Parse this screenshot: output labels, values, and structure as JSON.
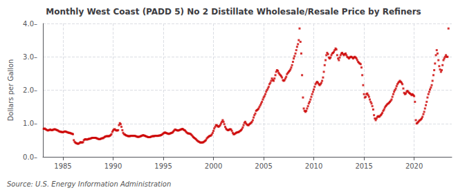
{
  "chart_data": {
    "type": "scatter",
    "title": "Monthly West Coast (PADD 5) No 2 Distillate Wholesale/Resale Price by Refiners",
    "ylabel": "Dollars per Gallon",
    "annotations": [
      "Source: U.S. Energy Information Administration"
    ],
    "color": "#cc0000",
    "marker": "square",
    "grid": true,
    "xlim": [
      1983.0,
      2023.75
    ],
    "ylim": [
      0.0,
      4.0
    ],
    "xticks": [
      1985,
      1990,
      1995,
      2000,
      2005,
      2010,
      2015,
      2020
    ],
    "yticks": [
      {
        "value": 0.0,
        "label": "0.0–"
      },
      {
        "value": 1.0,
        "label": "1.0–"
      },
      {
        "value": 2.0,
        "label": "2.0–"
      },
      {
        "value": 3.0,
        "label": "3.0–"
      },
      {
        "value": 4.0,
        "label": "4.0–"
      }
    ],
    "x": [
      1983.08,
      1983.17,
      1983.25,
      1983.33,
      1983.42,
      1983.5,
      1983.58,
      1983.67,
      1983.75,
      1983.83,
      1983.92,
      1984.0,
      1984.08,
      1984.17,
      1984.25,
      1984.33,
      1984.42,
      1984.5,
      1984.58,
      1984.67,
      1984.75,
      1984.83,
      1984.92,
      1985.0,
      1985.08,
      1985.17,
      1985.25,
      1985.33,
      1985.42,
      1985.5,
      1985.58,
      1985.67,
      1985.75,
      1985.83,
      1985.92,
      1986.0,
      1986.08,
      1986.17,
      1986.25,
      1986.33,
      1986.42,
      1986.5,
      1986.58,
      1986.67,
      1986.75,
      1986.83,
      1986.92,
      1987.0,
      1987.08,
      1987.17,
      1987.25,
      1987.33,
      1987.42,
      1987.5,
      1987.58,
      1987.67,
      1987.75,
      1987.83,
      1987.92,
      1988.0,
      1988.08,
      1988.17,
      1988.25,
      1988.33,
      1988.42,
      1988.5,
      1988.58,
      1988.67,
      1988.75,
      1988.83,
      1988.92,
      1989.0,
      1989.08,
      1989.17,
      1989.25,
      1989.33,
      1989.42,
      1989.5,
      1989.58,
      1989.67,
      1989.75,
      1989.83,
      1989.92,
      1990.0,
      1990.08,
      1990.17,
      1990.25,
      1990.33,
      1990.42,
      1990.5,
      1990.58,
      1990.67,
      1990.75,
      1990.83,
      1990.92,
      1991.0,
      1991.08,
      1991.17,
      1991.25,
      1991.33,
      1991.42,
      1991.5,
      1991.58,
      1991.67,
      1991.75,
      1991.83,
      1991.92,
      1992.0,
      1992.08,
      1992.17,
      1992.25,
      1992.33,
      1992.42,
      1992.5,
      1992.58,
      1992.67,
      1992.75,
      1992.83,
      1992.92,
      1993.0,
      1993.08,
      1993.17,
      1993.25,
      1993.33,
      1993.42,
      1993.5,
      1993.58,
      1993.67,
      1993.75,
      1993.83,
      1993.92,
      1994.0,
      1994.08,
      1994.17,
      1994.25,
      1994.33,
      1994.42,
      1994.5,
      1994.58,
      1994.67,
      1994.75,
      1994.83,
      1994.92,
      1995.0,
      1995.08,
      1995.17,
      1995.25,
      1995.33,
      1995.42,
      1995.5,
      1995.58,
      1995.67,
      1995.75,
      1995.83,
      1995.92,
      1996.0,
      1996.08,
      1996.17,
      1996.25,
      1996.33,
      1996.42,
      1996.5,
      1996.58,
      1996.67,
      1996.75,
      1996.83,
      1996.92,
      1997.0,
      1997.08,
      1997.17,
      1997.25,
      1997.33,
      1997.42,
      1997.5,
      1997.58,
      1997.67,
      1997.75,
      1997.83,
      1997.92,
      1998.0,
      1998.08,
      1998.17,
      1998.25,
      1998.33,
      1998.42,
      1998.5,
      1998.58,
      1998.67,
      1998.75,
      1998.83,
      1998.92,
      1999.0,
      1999.08,
      1999.17,
      1999.25,
      1999.33,
      1999.42,
      1999.5,
      1999.58,
      1999.67,
      1999.75,
      1999.83,
      1999.92,
      2000.0,
      2000.08,
      2000.17,
      2000.25,
      2000.33,
      2000.42,
      2000.5,
      2000.58,
      2000.67,
      2000.75,
      2000.83,
      2000.92,
      2001.0,
      2001.08,
      2001.17,
      2001.25,
      2001.33,
      2001.42,
      2001.5,
      2001.58,
      2001.67,
      2001.75,
      2001.83,
      2001.92,
      2002.0,
      2002.08,
      2002.17,
      2002.25,
      2002.33,
      2002.42,
      2002.5,
      2002.58,
      2002.67,
      2002.75,
      2002.83,
      2002.92,
      2003.0,
      2003.08,
      2003.17,
      2003.25,
      2003.33,
      2003.42,
      2003.5,
      2003.58,
      2003.67,
      2003.75,
      2003.83,
      2003.92,
      2004.0,
      2004.08,
      2004.17,
      2004.25,
      2004.33,
      2004.42,
      2004.5,
      2004.58,
      2004.67,
      2004.75,
      2004.83,
      2004.92,
      2005.0,
      2005.08,
      2005.17,
      2005.25,
      2005.33,
      2005.42,
      2005.5,
      2005.58,
      2005.67,
      2005.75,
      2005.83,
      2005.92,
      2006.0,
      2006.08,
      2006.17,
      2006.25,
      2006.33,
      2006.42,
      2006.5,
      2006.58,
      2006.67,
      2006.75,
      2006.83,
      2006.92,
      2007.0,
      2007.08,
      2007.17,
      2007.25,
      2007.33,
      2007.42,
      2007.5,
      2007.58,
      2007.67,
      2007.75,
      2007.83,
      2007.92,
      2008.0,
      2008.08,
      2008.17,
      2008.25,
      2008.33,
      2008.42,
      2008.5,
      2008.58,
      2008.67,
      2008.75,
      2008.83,
      2008.92,
      2009.0,
      2009.08,
      2009.17,
      2009.25,
      2009.33,
      2009.42,
      2009.5,
      2009.58,
      2009.67,
      2009.75,
      2009.83,
      2009.92,
      2010.0,
      2010.08,
      2010.17,
      2010.25,
      2010.33,
      2010.42,
      2010.5,
      2010.58,
      2010.67,
      2010.75,
      2010.83,
      2010.92,
      2011.0,
      2011.08,
      2011.17,
      2011.25,
      2011.33,
      2011.42,
      2011.5,
      2011.58,
      2011.67,
      2011.75,
      2011.83,
      2011.92,
      2012.0,
      2012.08,
      2012.17,
      2012.25,
      2012.33,
      2012.42,
      2012.5,
      2012.58,
      2012.67,
      2012.75,
      2012.83,
      2012.92,
      2013.0,
      2013.08,
      2013.17,
      2013.25,
      2013.33,
      2013.42,
      2013.5,
      2013.58,
      2013.67,
      2013.75,
      2013.83,
      2013.92,
      2014.0,
      2014.08,
      2014.17,
      2014.25,
      2014.33,
      2014.42,
      2014.5,
      2014.58,
      2014.67,
      2014.75,
      2014.83,
      2014.92,
      2015.0,
      2015.08,
      2015.17,
      2015.25,
      2015.33,
      2015.42,
      2015.5,
      2015.58,
      2015.67,
      2015.75,
      2015.83,
      2015.92,
      2016.0,
      2016.08,
      2016.17,
      2016.25,
      2016.33,
      2016.42,
      2016.5,
      2016.58,
      2016.67,
      2016.75,
      2016.83,
      2016.92,
      2017.0,
      2017.08,
      2017.17,
      2017.25,
      2017.33,
      2017.42,
      2017.5,
      2017.58,
      2017.67,
      2017.75,
      2017.83,
      2017.92,
      2018.0,
      2018.08,
      2018.17,
      2018.25,
      2018.33,
      2018.42,
      2018.5,
      2018.58,
      2018.67,
      2018.75,
      2018.83,
      2018.92,
      2019.0,
      2019.08,
      2019.17,
      2019.25,
      2019.33,
      2019.42,
      2019.5,
      2019.58,
      2019.67,
      2019.75,
      2019.83,
      2019.92,
      2020.0,
      2020.08,
      2020.17,
      2020.25,
      2020.33,
      2020.42,
      2020.5,
      2020.58,
      2020.67,
      2020.75,
      2020.83,
      2020.92,
      2021.0,
      2021.08,
      2021.17,
      2021.25,
      2021.33,
      2021.42,
      2021.5,
      2021.58,
      2021.67,
      2021.75,
      2021.83,
      2021.92,
      2022.0,
      2022.08,
      2022.17,
      2022.25,
      2022.33,
      2022.42,
      2022.5,
      2022.58,
      2022.67,
      2022.75,
      2022.83,
      2022.92,
      2023.0,
      2023.08,
      2023.17,
      2023.25,
      2023.33,
      2023.42
    ],
    "values": [
      0.84,
      0.85,
      0.83,
      0.82,
      0.8,
      0.79,
      0.8,
      0.81,
      0.82,
      0.8,
      0.8,
      0.81,
      0.82,
      0.83,
      0.82,
      0.81,
      0.8,
      0.79,
      0.77,
      0.76,
      0.75,
      0.75,
      0.74,
      0.74,
      0.75,
      0.76,
      0.76,
      0.75,
      0.74,
      0.73,
      0.72,
      0.72,
      0.71,
      0.7,
      0.69,
      0.68,
      0.5,
      0.45,
      0.42,
      0.41,
      0.4,
      0.39,
      0.4,
      0.42,
      0.44,
      0.43,
      0.43,
      0.44,
      0.5,
      0.52,
      0.53,
      0.52,
      0.52,
      0.53,
      0.54,
      0.54,
      0.55,
      0.56,
      0.57,
      0.57,
      0.57,
      0.57,
      0.57,
      0.56,
      0.55,
      0.54,
      0.53,
      0.53,
      0.54,
      0.55,
      0.56,
      0.56,
      0.58,
      0.6,
      0.61,
      0.62,
      0.62,
      0.62,
      0.62,
      0.63,
      0.65,
      0.68,
      0.75,
      0.79,
      0.82,
      0.83,
      0.8,
      0.79,
      0.79,
      0.8,
      0.95,
      1.01,
      0.98,
      0.9,
      0.8,
      0.72,
      0.68,
      0.67,
      0.65,
      0.64,
      0.63,
      0.62,
      0.62,
      0.62,
      0.63,
      0.63,
      0.63,
      0.63,
      0.63,
      0.63,
      0.62,
      0.61,
      0.6,
      0.6,
      0.6,
      0.61,
      0.62,
      0.63,
      0.64,
      0.65,
      0.64,
      0.63,
      0.62,
      0.61,
      0.6,
      0.59,
      0.59,
      0.59,
      0.6,
      0.61,
      0.62,
      0.62,
      0.62,
      0.63,
      0.63,
      0.63,
      0.63,
      0.63,
      0.64,
      0.64,
      0.65,
      0.66,
      0.68,
      0.7,
      0.72,
      0.73,
      0.72,
      0.71,
      0.7,
      0.69,
      0.69,
      0.7,
      0.71,
      0.72,
      0.73,
      0.76,
      0.79,
      0.82,
      0.81,
      0.8,
      0.79,
      0.79,
      0.8,
      0.81,
      0.82,
      0.83,
      0.84,
      0.82,
      0.8,
      0.79,
      0.76,
      0.73,
      0.71,
      0.7,
      0.7,
      0.69,
      0.68,
      0.65,
      0.62,
      0.59,
      0.57,
      0.55,
      0.53,
      0.5,
      0.48,
      0.46,
      0.45,
      0.43,
      0.43,
      0.43,
      0.43,
      0.44,
      0.46,
      0.48,
      0.5,
      0.55,
      0.58,
      0.6,
      0.62,
      0.63,
      0.64,
      0.67,
      0.72,
      0.78,
      0.85,
      0.9,
      0.95,
      0.95,
      0.92,
      0.9,
      0.92,
      0.95,
      1.0,
      1.05,
      1.1,
      1.05,
      0.98,
      0.9,
      0.85,
      0.82,
      0.8,
      0.8,
      0.82,
      0.83,
      0.82,
      0.78,
      0.72,
      0.68,
      0.68,
      0.7,
      0.72,
      0.73,
      0.74,
      0.74,
      0.76,
      0.78,
      0.8,
      0.83,
      0.88,
      0.95,
      1.02,
      1.05,
      1.0,
      0.97,
      0.95,
      0.95,
      0.98,
      1.0,
      1.02,
      1.05,
      1.1,
      1.18,
      1.25,
      1.3,
      1.38,
      1.4,
      1.42,
      1.45,
      1.5,
      1.55,
      1.6,
      1.65,
      1.72,
      1.78,
      1.82,
      1.88,
      1.95,
      2.0,
      2.05,
      2.1,
      2.18,
      2.22,
      2.28,
      2.35,
      2.3,
      2.28,
      2.35,
      2.45,
      2.55,
      2.6,
      2.58,
      2.52,
      2.48,
      2.45,
      2.42,
      2.38,
      2.3,
      2.28,
      2.3,
      2.35,
      2.4,
      2.48,
      2.52,
      2.55,
      2.58,
      2.62,
      2.68,
      2.75,
      2.85,
      2.95,
      3.02,
      3.1,
      3.2,
      3.3,
      3.38,
      3.5,
      3.85,
      3.45,
      3.1,
      2.45,
      1.78,
      1.45,
      1.38,
      1.35,
      1.38,
      1.45,
      1.52,
      1.6,
      1.65,
      1.72,
      1.8,
      1.88,
      1.95,
      2.02,
      2.1,
      2.18,
      2.22,
      2.25,
      2.22,
      2.18,
      2.15,
      2.18,
      2.22,
      2.28,
      2.38,
      2.55,
      2.75,
      2.9,
      3.05,
      3.12,
      3.08,
      2.98,
      2.95,
      2.98,
      3.05,
      3.1,
      3.12,
      3.15,
      3.2,
      3.25,
      3.22,
      3.05,
      2.95,
      2.9,
      2.98,
      3.05,
      3.1,
      3.12,
      3.08,
      3.05,
      3.08,
      3.1,
      3.05,
      3.0,
      2.98,
      2.95,
      2.98,
      3.0,
      3.0,
      2.98,
      2.95,
      2.98,
      3.0,
      2.98,
      2.95,
      2.9,
      2.85,
      2.82,
      2.8,
      2.78,
      2.68,
      2.45,
      2.15,
      1.88,
      1.78,
      1.8,
      1.88,
      1.9,
      1.85,
      1.8,
      1.72,
      1.65,
      1.6,
      1.52,
      1.42,
      1.25,
      1.15,
      1.1,
      1.15,
      1.2,
      1.22,
      1.2,
      1.22,
      1.25,
      1.28,
      1.32,
      1.38,
      1.42,
      1.48,
      1.52,
      1.55,
      1.58,
      1.6,
      1.62,
      1.65,
      1.68,
      1.72,
      1.8,
      1.88,
      1.95,
      2.0,
      2.05,
      2.12,
      2.18,
      2.22,
      2.25,
      2.28,
      2.25,
      2.22,
      2.18,
      2.05,
      1.92,
      1.88,
      1.9,
      1.95,
      1.98,
      1.95,
      1.92,
      1.9,
      1.88,
      1.85,
      1.88,
      1.85,
      1.82,
      1.65,
      1.1,
      1.0,
      1.02,
      1.05,
      1.08,
      1.1,
      1.12,
      1.15,
      1.2,
      1.28,
      1.35,
      1.45,
      1.55,
      1.65,
      1.78,
      1.88,
      1.95,
      2.02,
      2.08,
      2.15,
      2.28,
      2.45,
      2.6,
      2.8,
      3.05,
      3.2,
      3.1,
      2.9,
      2.72,
      2.62,
      2.55,
      2.6,
      2.75,
      2.9,
      2.95,
      3.0,
      3.05,
      3.0,
      3.0,
      3.85
    ]
  }
}
